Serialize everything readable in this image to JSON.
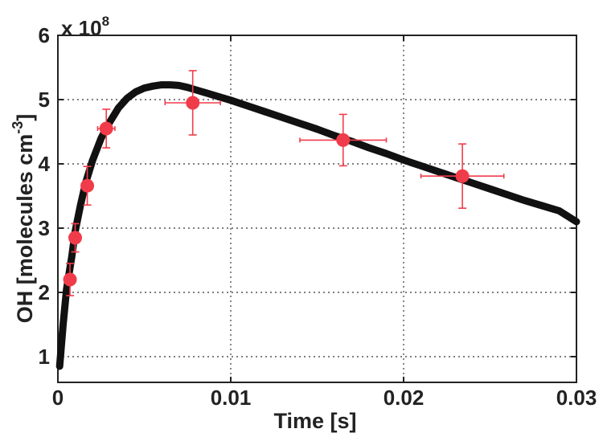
{
  "chart_data": {
    "type": "scatter",
    "xlabel": "Time [s]",
    "ylabel_main": "OH [molecules cm",
    "ylabel_sup": "-3",
    "ylabel_close": "]",
    "y_multiplier_base": "x 10",
    "y_multiplier_exp": "8",
    "xlim": [
      0,
      0.03
    ],
    "ylim": [
      0.6,
      6
    ],
    "x_ticks": [
      0,
      0.01,
      0.02,
      0.03
    ],
    "x_tick_labels": [
      "0",
      "0.01",
      "0.02",
      "0.03"
    ],
    "y_ticks": [
      1,
      2,
      3,
      4,
      5,
      6
    ],
    "y_tick_labels": [
      "1",
      "2",
      "3",
      "4",
      "5",
      "6"
    ],
    "grid": true,
    "series": [
      {
        "kind": "line",
        "color": "#111111",
        "x": [
          0.0001,
          0.0003,
          0.0005,
          0.0008,
          0.001,
          0.0013,
          0.0016,
          0.002,
          0.0025,
          0.003,
          0.0035,
          0.004,
          0.0045,
          0.005,
          0.0055,
          0.006,
          0.0065,
          0.007,
          0.0075,
          0.008,
          0.009,
          0.01,
          0.011,
          0.012,
          0.013,
          0.014,
          0.015,
          0.016,
          0.017,
          0.018,
          0.019,
          0.02,
          0.021,
          0.022,
          0.023,
          0.024,
          0.025,
          0.026,
          0.027,
          0.028,
          0.029,
          0.03
        ],
        "y": [
          0.85,
          1.5,
          2.05,
          2.55,
          2.95,
          3.35,
          3.7,
          4.05,
          4.4,
          4.65,
          4.87,
          5.02,
          5.12,
          5.18,
          5.21,
          5.23,
          5.23,
          5.22,
          5.19,
          5.15,
          5.07,
          4.99,
          4.9,
          4.81,
          4.72,
          4.63,
          4.54,
          4.44,
          4.35,
          4.25,
          4.16,
          4.06,
          3.97,
          3.88,
          3.79,
          3.7,
          3.61,
          3.52,
          3.43,
          3.35,
          3.27,
          3.1
        ]
      },
      {
        "kind": "points",
        "color": "#f03c4a",
        "x": [
          0.0007,
          0.001,
          0.0017,
          0.0028,
          0.0078,
          0.0165,
          0.0234
        ],
        "y": [
          2.2,
          2.85,
          3.66,
          4.55,
          4.95,
          4.37,
          3.81
        ],
        "y_err": [
          0.25,
          0.22,
          0.3,
          0.3,
          0.5,
          0.4,
          0.5
        ],
        "x_err": [
          0.0002,
          0.0003,
          0.0003,
          0.0005,
          0.0016,
          0.0025,
          0.0024
        ]
      }
    ]
  }
}
